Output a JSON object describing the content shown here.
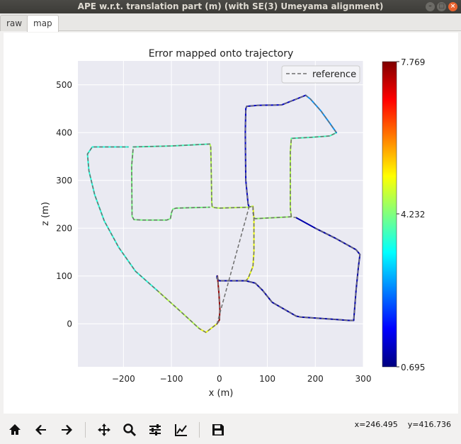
{
  "window": {
    "title": "APE w.r.t. translation part (m) (with SE(3) Umeyama alignment)",
    "buttons": [
      "×",
      "–",
      "□"
    ]
  },
  "tabs": [
    {
      "label": "raw",
      "active": false
    },
    {
      "label": "map",
      "active": true
    }
  ],
  "toolbar": {
    "items": [
      "home-icon",
      "back-icon",
      "forward-icon",
      "pan-icon",
      "zoom-icon",
      "subplots-icon",
      "customize-icon",
      "save-icon"
    ],
    "coordinate_readout": "x=246.495    y=416.736"
  },
  "chart_data": {
    "type": "line",
    "title": "Error mapped onto trajectory",
    "xlabel": "x (m)",
    "ylabel": "z (m)",
    "xlim": [
      -295,
      300
    ],
    "ylim": [
      -90,
      550
    ],
    "xticks": [
      -200,
      -100,
      0,
      100,
      200,
      300
    ],
    "yticks": [
      0,
      100,
      200,
      300,
      400,
      500
    ],
    "grid": true,
    "legend": {
      "entries": [
        "reference"
      ],
      "placement": "top-right"
    },
    "colorbar": {
      "min": 0.695,
      "max": 7.769,
      "ticks": [
        "0.695",
        "4.232",
        "7.769"
      ],
      "colormap": "jet"
    },
    "series": [
      {
        "name": "reference",
        "style": "dashed",
        "color": "#6e6e6e",
        "points": [
          [
            -4,
            100
          ],
          [
            -1,
            65
          ],
          [
            1,
            30
          ],
          [
            0,
            8
          ],
          [
            -5,
            0
          ],
          [
            -15,
            -8
          ],
          [
            -28,
            -18
          ],
          [
            -42,
            -10
          ],
          [
            -80,
            25
          ],
          [
            -130,
            70
          ],
          [
            -175,
            110
          ],
          [
            -210,
            160
          ],
          [
            -240,
            215
          ],
          [
            -260,
            270
          ],
          [
            -272,
            320
          ],
          [
            -275,
            355
          ],
          [
            -265,
            370
          ],
          [
            -230,
            370
          ],
          [
            -190,
            370
          ],
          [
            -180,
            370
          ],
          [
            -100,
            372
          ],
          [
            -20,
            376
          ],
          [
            -18,
            370
          ],
          [
            -17,
            320
          ],
          [
            -16,
            255
          ],
          [
            -15,
            245
          ],
          [
            -10,
            243
          ],
          [
            0,
            242
          ],
          [
            60,
            244
          ],
          [
            70,
            246
          ],
          [
            70,
            232
          ],
          [
            72,
            222
          ],
          [
            75,
            220
          ],
          [
            150,
            224
          ],
          [
            160,
            222
          ],
          [
            200,
            200
          ],
          [
            240,
            180
          ],
          [
            285,
            155
          ],
          [
            293,
            145
          ],
          [
            290,
            120
          ],
          [
            285,
            70
          ],
          [
            280,
            7
          ],
          [
            270,
            7
          ],
          [
            230,
            10
          ],
          [
            170,
            14
          ],
          [
            160,
            16
          ],
          [
            110,
            45
          ],
          [
            90,
            70
          ],
          [
            75,
            85
          ],
          [
            55,
            90
          ],
          [
            20,
            90
          ],
          [
            0,
            90
          ],
          [
            -5,
            95
          ],
          [
            -5,
            100
          ],
          [
            -180,
            365
          ],
          [
            -183,
            330
          ],
          [
            -182,
            225
          ],
          [
            -178,
            218
          ],
          [
            -160,
            217
          ],
          [
            -110,
            217
          ],
          [
            -102,
            220
          ],
          [
            -100,
            232
          ],
          [
            -97,
            240
          ],
          [
            -90,
            242
          ],
          [
            -20,
            244
          ],
          [
            70,
            246
          ],
          [
            72,
            220
          ],
          [
            72,
            150
          ],
          [
            70,
            120
          ],
          [
            60,
            95
          ],
          [
            55,
            90
          ],
          [
            150,
            224
          ],
          [
            148,
            240
          ],
          [
            148,
            360
          ],
          [
            150,
            388
          ],
          [
            190,
            390
          ],
          [
            230,
            393
          ],
          [
            244,
            400
          ],
          [
            230,
            420
          ],
          [
            212,
            445
          ],
          [
            190,
            470
          ],
          [
            180,
            478
          ],
          [
            160,
            470
          ],
          [
            130,
            458
          ],
          [
            80,
            457
          ],
          [
            57,
            455
          ],
          [
            55,
            450
          ],
          [
            54,
            400
          ],
          [
            55,
            300
          ],
          [
            60,
            250
          ],
          [
            62,
            245
          ],
          [
            -5,
            0
          ],
          [
            0,
            3
          ]
        ]
      },
      {
        "name": "estimate",
        "style": "solid",
        "color_by_error": true,
        "segments": [
          {
            "error": 5.0,
            "points": [
              [
                -5,
                0
              ],
              [
                -15,
                -8
              ],
              [
                -28,
                -18
              ],
              [
                -42,
                -10
              ]
            ]
          },
          {
            "error": 7.6,
            "points": [
              [
                -4,
                100
              ],
              [
                -1,
                65
              ],
              [
                1,
                30
              ],
              [
                0,
                8
              ],
              [
                -5,
                0
              ]
            ]
          },
          {
            "error": 4.6,
            "points": [
              [
                -42,
                -10
              ],
              [
                -80,
                25
              ],
              [
                -130,
                70
              ]
            ]
          },
          {
            "error": 3.6,
            "points": [
              [
                -130,
                70
              ],
              [
                -175,
                110
              ],
              [
                -210,
                160
              ],
              [
                -240,
                215
              ],
              [
                -260,
                270
              ],
              [
                -272,
                320
              ],
              [
                -275,
                355
              ],
              [
                -265,
                370
              ],
              [
                -230,
                370
              ],
              [
                -190,
                370
              ]
            ]
          },
          {
            "error": 3.8,
            "points": [
              [
                -180,
                370
              ],
              [
                -100,
                372
              ],
              [
                -20,
                376
              ]
            ]
          },
          {
            "error": 4.6,
            "points": [
              [
                -20,
                376
              ],
              [
                -18,
                370
              ],
              [
                -17,
                320
              ],
              [
                -16,
                255
              ],
              [
                -15,
                245
              ],
              [
                -10,
                243
              ],
              [
                0,
                242
              ],
              [
                60,
                244
              ],
              [
                70,
                246
              ]
            ]
          },
          {
            "error": 4.2,
            "points": [
              [
                -180,
                365
              ],
              [
                -183,
                330
              ],
              [
                -182,
                225
              ],
              [
                -178,
                218
              ],
              [
                -160,
                217
              ],
              [
                -110,
                217
              ],
              [
                -102,
                220
              ],
              [
                -100,
                232
              ],
              [
                -97,
                240
              ],
              [
                -90,
                242
              ],
              [
                -20,
                244
              ]
            ]
          },
          {
            "error": 5.0,
            "points": [
              [
                70,
                246
              ],
              [
                72,
                220
              ],
              [
                72,
                150
              ],
              [
                70,
                120
              ],
              [
                60,
                95
              ],
              [
                55,
                90
              ]
            ]
          },
          {
            "error": 4.4,
            "points": [
              [
                72,
                222
              ],
              [
                75,
                220
              ],
              [
                150,
                224
              ]
            ]
          },
          {
            "error": 4.6,
            "points": [
              [
                150,
                224
              ],
              [
                148,
                240
              ],
              [
                148,
                360
              ],
              [
                150,
                388
              ]
            ]
          },
          {
            "error": 3.8,
            "points": [
              [
                150,
                388
              ],
              [
                190,
                390
              ],
              [
                230,
                393
              ],
              [
                244,
                400
              ]
            ]
          },
          {
            "error": 2.6,
            "points": [
              [
                244,
                400
              ],
              [
                230,
                420
              ],
              [
                212,
                445
              ],
              [
                190,
                470
              ],
              [
                180,
                478
              ]
            ]
          },
          {
            "error": 1.2,
            "points": [
              [
                180,
                478
              ],
              [
                160,
                470
              ],
              [
                130,
                458
              ],
              [
                80,
                457
              ],
              [
                57,
                455
              ],
              [
                55,
                450
              ],
              [
                54,
                400
              ],
              [
                55,
                300
              ],
              [
                60,
                250
              ],
              [
                62,
                245
              ]
            ]
          },
          {
            "error": 1.0,
            "points": [
              [
                160,
                222
              ],
              [
                200,
                200
              ],
              [
                240,
                180
              ],
              [
                285,
                155
              ],
              [
                293,
                145
              ],
              [
                290,
                120
              ],
              [
                285,
                70
              ],
              [
                280,
                7
              ],
              [
                270,
                7
              ],
              [
                230,
                10
              ],
              [
                170,
                14
              ],
              [
                160,
                16
              ],
              [
                110,
                45
              ],
              [
                90,
                70
              ],
              [
                75,
                85
              ],
              [
                55,
                90
              ],
              [
                20,
                90
              ],
              [
                0,
                90
              ],
              [
                -5,
                95
              ],
              [
                -5,
                100
              ]
            ]
          }
        ]
      }
    ]
  }
}
